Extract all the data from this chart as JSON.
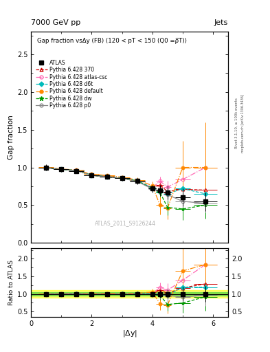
{
  "title_top": "7000 GeV pp",
  "title_right": "Jets",
  "plot_title": "Gap fraction vsΔy (FB) (120 < pT < 150 (Q0 =ρ̅T))",
  "watermark": "ATLAS_2011_S9126244",
  "right_label": "Rivet 3.1.10, ≥ 100k events",
  "arxiv_label": "mcplots.cern.ch [arXiv:1306.3436]",
  "ylabel_main": "Gap fraction",
  "ylabel_ratio": "Ratio to ATLAS",
  "xlabel": "|$\\Delta$y|",
  "xlim": [
    0,
    6.5
  ],
  "ylim_main": [
    0.0,
    2.8
  ],
  "ylim_ratio": [
    0.35,
    2.3
  ],
  "x_data": [
    0.5,
    1.0,
    1.5,
    2.0,
    2.5,
    3.0,
    3.5,
    4.0,
    4.25,
    4.5,
    5.0,
    5.75
  ],
  "atlas_y": [
    1.0,
    0.975,
    0.955,
    0.9,
    0.88,
    0.855,
    0.82,
    0.72,
    0.695,
    0.67,
    0.605,
    0.545
  ],
  "atlas_yerr": [
    0.04,
    0.03,
    0.03,
    0.03,
    0.03,
    0.035,
    0.04,
    0.05,
    0.07,
    0.09,
    0.12,
    0.12
  ],
  "atlas_xerr": [
    0.25,
    0.25,
    0.25,
    0.25,
    0.25,
    0.25,
    0.25,
    0.125,
    0.125,
    0.125,
    0.25,
    0.375
  ],
  "py370_y": [
    1.0,
    0.975,
    0.96,
    0.895,
    0.875,
    0.855,
    0.82,
    0.72,
    0.77,
    0.68,
    0.71,
    0.7
  ],
  "py370_yerr": [
    0.02,
    0.02,
    0.02,
    0.02,
    0.02,
    0.025,
    0.03,
    0.04,
    0.05,
    0.07,
    0.09,
    0.1
  ],
  "py370_xerr": [
    0.25,
    0.25,
    0.25,
    0.25,
    0.25,
    0.25,
    0.25,
    0.125,
    0.125,
    0.125,
    0.25,
    0.375
  ],
  "pyatlas_y": [
    1.0,
    0.975,
    0.965,
    0.9,
    0.88,
    0.86,
    0.825,
    0.73,
    0.82,
    0.74,
    0.84,
    1.0
  ],
  "pyatlas_yerr": [
    0.02,
    0.02,
    0.02,
    0.02,
    0.02,
    0.025,
    0.03,
    0.04,
    0.06,
    0.08,
    0.1,
    0.2
  ],
  "pyatlas_xerr": [
    0.25,
    0.25,
    0.25,
    0.25,
    0.25,
    0.25,
    0.25,
    0.125,
    0.125,
    0.125,
    0.25,
    0.375
  ],
  "pyd6t_y": [
    1.0,
    0.975,
    0.96,
    0.9,
    0.88,
    0.86,
    0.825,
    0.73,
    0.68,
    0.65,
    0.72,
    0.65
  ],
  "pyd6t_yerr": [
    0.02,
    0.02,
    0.02,
    0.02,
    0.02,
    0.025,
    0.03,
    0.04,
    0.06,
    0.08,
    0.1,
    0.12
  ],
  "pyd6t_xerr": [
    0.25,
    0.25,
    0.25,
    0.25,
    0.25,
    0.25,
    0.25,
    0.125,
    0.125,
    0.125,
    0.25,
    0.375
  ],
  "pydefault_y": [
    1.005,
    0.98,
    0.965,
    0.91,
    0.895,
    0.87,
    0.835,
    0.76,
    0.5,
    0.46,
    1.0,
    1.0
  ],
  "pydefault_yerr": [
    0.02,
    0.02,
    0.02,
    0.02,
    0.02,
    0.025,
    0.03,
    0.05,
    0.12,
    0.15,
    0.35,
    0.6
  ],
  "pydefault_xerr": [
    0.25,
    0.25,
    0.25,
    0.25,
    0.25,
    0.25,
    0.25,
    0.125,
    0.125,
    0.125,
    0.25,
    0.375
  ],
  "pydw_y": [
    1.0,
    0.975,
    0.96,
    0.895,
    0.875,
    0.855,
    0.82,
    0.72,
    0.67,
    0.47,
    0.45,
    0.5
  ],
  "pydw_yerr": [
    0.02,
    0.02,
    0.02,
    0.02,
    0.02,
    0.025,
    0.03,
    0.04,
    0.06,
    0.1,
    0.15,
    0.18
  ],
  "pydw_xerr": [
    0.25,
    0.25,
    0.25,
    0.25,
    0.25,
    0.25,
    0.25,
    0.125,
    0.125,
    0.125,
    0.25,
    0.375
  ],
  "pyp0_y": [
    1.0,
    0.975,
    0.96,
    0.895,
    0.875,
    0.855,
    0.815,
    0.715,
    0.69,
    0.64,
    0.55,
    0.525
  ],
  "pyp0_yerr": [
    0.02,
    0.02,
    0.02,
    0.02,
    0.02,
    0.025,
    0.03,
    0.04,
    0.06,
    0.08,
    0.1,
    0.12
  ],
  "pyp0_xerr": [
    0.25,
    0.25,
    0.25,
    0.25,
    0.25,
    0.25,
    0.25,
    0.125,
    0.125,
    0.125,
    0.25,
    0.375
  ],
  "color_atlas": "#000000",
  "color_370": "#cc0000",
  "color_atlas_csc": "#ff69b4",
  "color_d6t": "#00bbbb",
  "color_default": "#ff8800",
  "color_dw": "#009900",
  "color_p0": "#888888",
  "band_yellow": [
    0.9,
    1.1
  ],
  "band_green": [
    0.95,
    1.05
  ]
}
